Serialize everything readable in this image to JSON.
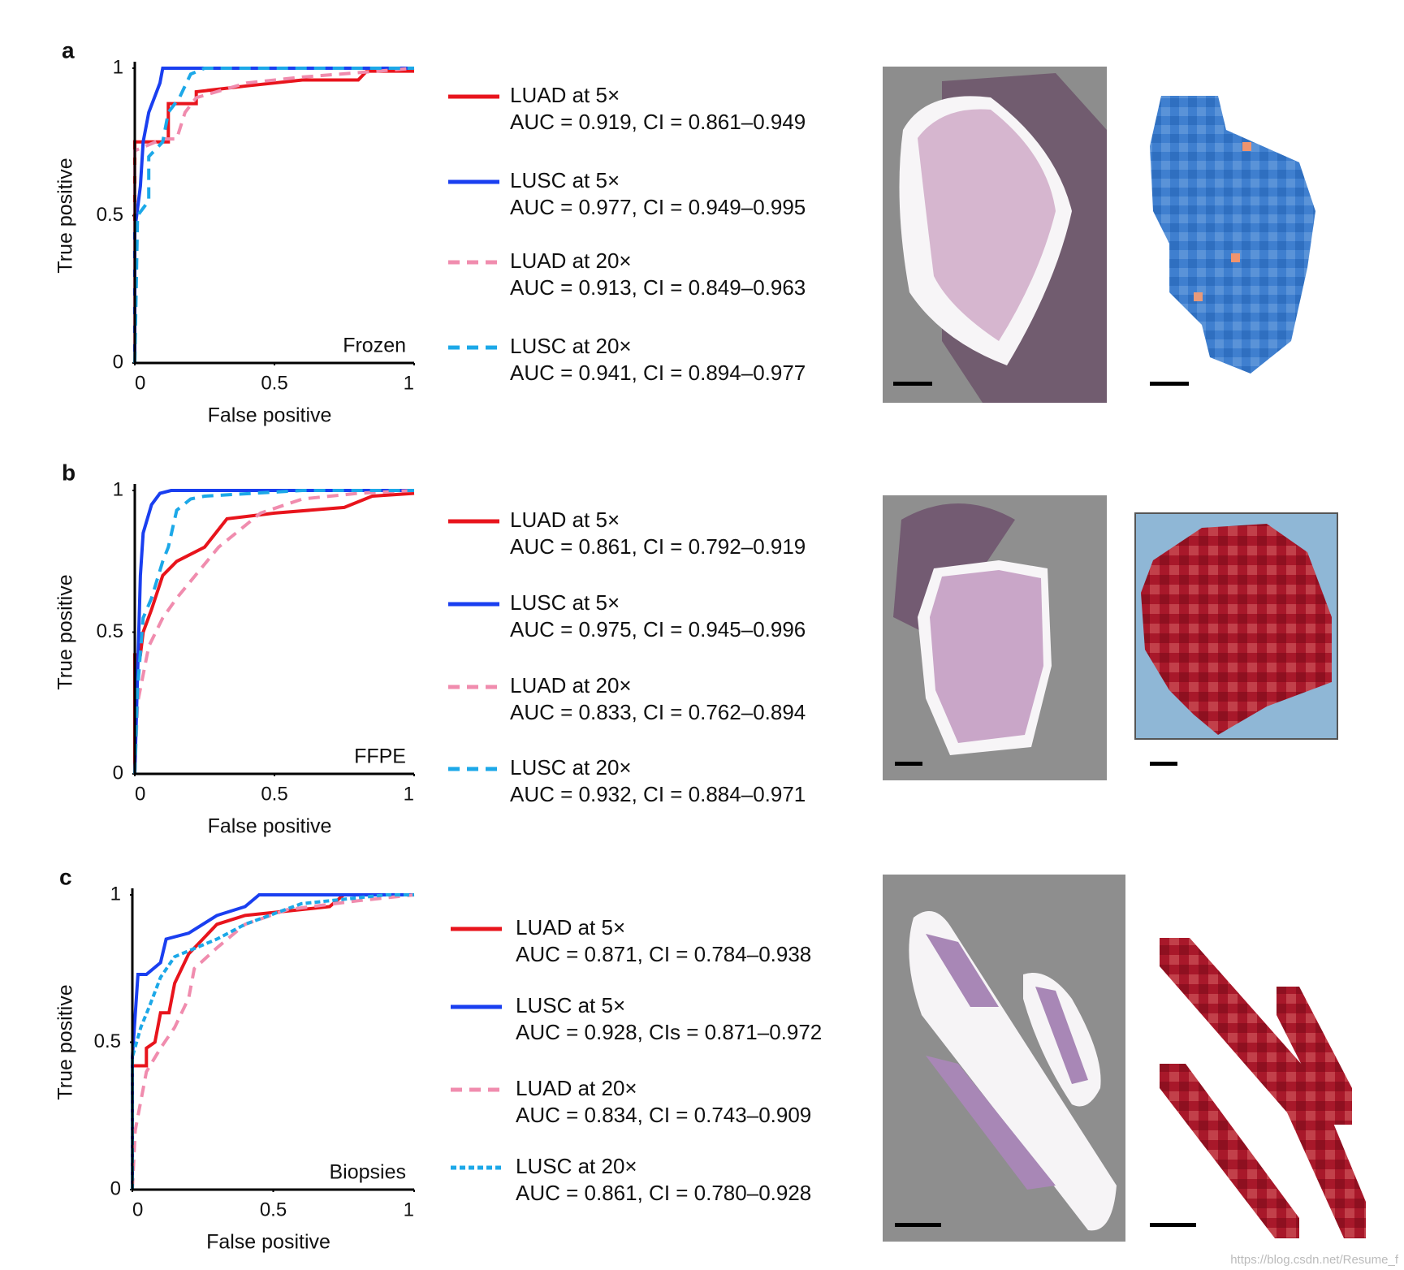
{
  "chart_data": [
    {
      "type": "line",
      "panel_label": "a",
      "annotation": "Frozen",
      "x_label": "False positive",
      "y_label": "True positive",
      "xlim": [
        0,
        1
      ],
      "ylim": [
        0,
        1
      ],
      "xticks": [
        0,
        0.5,
        1
      ],
      "yticks": [
        0,
        0.5,
        1
      ],
      "series": [
        {
          "name": "LUAD at 5×",
          "auc_label": "AUC = 0.919, CI = 0.861–0.949",
          "color": "#e8141c",
          "linestyle": "solid",
          "x": [
            0,
            0,
            0.12,
            0.12,
            0.22,
            0.22,
            0.4,
            0.6,
            0.8,
            0.83,
            1
          ],
          "values": [
            0,
            0.75,
            0.75,
            0.88,
            0.88,
            0.92,
            0.94,
            0.96,
            0.96,
            0.99,
            0.99
          ]
        },
        {
          "name": "LUSC at 5×",
          "auc_label": "AUC = 0.977, CI = 0.949–0.995",
          "color": "#1a3ff0",
          "linestyle": "solid",
          "x": [
            0,
            0,
            0.02,
            0.03,
            0.05,
            0.07,
            0.09,
            0.1,
            1
          ],
          "values": [
            0,
            0.45,
            0.6,
            0.75,
            0.85,
            0.9,
            0.95,
            1,
            1
          ]
        },
        {
          "name": "LUAD at 20×",
          "auc_label": "AUC = 0.913, CI = 0.849–0.963",
          "color": "#f08cae",
          "linestyle": "dashed",
          "x": [
            0,
            0,
            0.1,
            0.15,
            0.18,
            0.22,
            0.4,
            0.6,
            1
          ],
          "values": [
            0,
            0.72,
            0.76,
            0.76,
            0.85,
            0.9,
            0.95,
            0.97,
            1
          ]
        },
        {
          "name": "LUSC at 20×",
          "auc_label": "AUC = 0.941, CI = 0.894–0.977",
          "color": "#1ca8e8",
          "linestyle": "dashed",
          "x": [
            0,
            0.01,
            0.05,
            0.05,
            0.1,
            0.12,
            0.16,
            0.2,
            0.25,
            1
          ],
          "values": [
            0,
            0.5,
            0.55,
            0.7,
            0.75,
            0.85,
            0.9,
            0.98,
            1,
            1
          ]
        }
      ]
    },
    {
      "type": "line",
      "panel_label": "b",
      "annotation": "FFPE",
      "x_label": "False positive",
      "y_label": "True positive",
      "xlim": [
        0,
        1
      ],
      "ylim": [
        0,
        1
      ],
      "xticks": [
        0,
        0.5,
        1
      ],
      "yticks": [
        0,
        0.5,
        1
      ],
      "series": [
        {
          "name": "LUAD at 5×",
          "auc_label": "AUC = 0.861, CI = 0.792–0.919",
          "color": "#e8141c",
          "linestyle": "solid",
          "x": [
            0,
            0,
            0.02,
            0.03,
            0.06,
            0.1,
            0.15,
            0.25,
            0.33,
            0.5,
            0.75,
            0.85,
            1
          ],
          "values": [
            0,
            0.42,
            0.42,
            0.5,
            0.58,
            0.7,
            0.75,
            0.8,
            0.9,
            0.92,
            0.94,
            0.98,
            0.99
          ]
        },
        {
          "name": "LUSC at 5×",
          "auc_label": "AUC = 0.975, CI = 0.945–0.996",
          "color": "#1a3ff0",
          "linestyle": "solid",
          "x": [
            0,
            0.01,
            0.02,
            0.03,
            0.06,
            0.09,
            0.13,
            1
          ],
          "values": [
            0,
            0.35,
            0.7,
            0.85,
            0.95,
            0.99,
            1,
            1
          ]
        },
        {
          "name": "LUAD at 20×",
          "auc_label": "AUC = 0.833, CI = 0.762–0.894",
          "color": "#f08cae",
          "linestyle": "dashed",
          "x": [
            0,
            0.01,
            0.05,
            0.1,
            0.15,
            0.2,
            0.3,
            0.45,
            0.6,
            0.8,
            1
          ],
          "values": [
            0,
            0.25,
            0.45,
            0.55,
            0.62,
            0.68,
            0.8,
            0.92,
            0.97,
            0.99,
            1
          ]
        },
        {
          "name": "LUSC at 20×",
          "auc_label": "AUC = 0.932, CI = 0.884–0.971",
          "color": "#1ca8e8",
          "linestyle": "dashed",
          "x": [
            0,
            0.01,
            0.03,
            0.06,
            0.1,
            0.12,
            0.15,
            0.2,
            0.25,
            0.6,
            1
          ],
          "values": [
            0,
            0.3,
            0.55,
            0.62,
            0.75,
            0.8,
            0.93,
            0.97,
            0.98,
            1,
            1
          ]
        }
      ]
    },
    {
      "type": "line",
      "panel_label": "c",
      "annotation": "Biopsies",
      "x_label": "False positive",
      "y_label": "True positive",
      "xlim": [
        0,
        1
      ],
      "ylim": [
        0,
        1
      ],
      "xticks": [
        0,
        0.5,
        1
      ],
      "yticks": [
        0,
        0.5,
        1
      ],
      "series": [
        {
          "name": "LUAD at 5×",
          "auc_label": "AUC = 0.871, CI = 0.784–0.938",
          "color": "#e8141c",
          "linestyle": "solid",
          "x": [
            0,
            0,
            0.05,
            0.05,
            0.08,
            0.1,
            0.13,
            0.15,
            0.2,
            0.25,
            0.3,
            0.4,
            0.7,
            0.75,
            1
          ],
          "values": [
            0,
            0.42,
            0.42,
            0.48,
            0.5,
            0.6,
            0.6,
            0.7,
            0.8,
            0.85,
            0.9,
            0.93,
            0.96,
            1,
            1
          ]
        },
        {
          "name": "LUSC at 5×",
          "auc_label": "AUC = 0.928, CIs = 0.871–0.972",
          "color": "#1a3ff0",
          "linestyle": "solid",
          "x": [
            0,
            0,
            0.02,
            0.05,
            0.1,
            0.12,
            0.2,
            0.3,
            0.4,
            0.45,
            1
          ],
          "values": [
            0,
            0.45,
            0.73,
            0.73,
            0.77,
            0.85,
            0.87,
            0.93,
            0.96,
            1,
            1
          ]
        },
        {
          "name": "LUAD at 20×",
          "auc_label": "AUC = 0.834, CI = 0.743–0.909",
          "color": "#f08cae",
          "linestyle": "dashed",
          "x": [
            0,
            0.01,
            0.03,
            0.05,
            0.1,
            0.15,
            0.2,
            0.22,
            0.3,
            0.4,
            0.55,
            0.8,
            1
          ],
          "values": [
            0,
            0.2,
            0.3,
            0.4,
            0.48,
            0.55,
            0.65,
            0.75,
            0.82,
            0.9,
            0.95,
            0.98,
            1
          ]
        },
        {
          "name": "LUSC at 20×",
          "auc_label": "AUC = 0.861, CI = 0.780–0.928",
          "color": "#1ca8e8",
          "linestyle": "dotted",
          "x": [
            0,
            0,
            0.03,
            0.06,
            0.1,
            0.15,
            0.3,
            0.4,
            0.6,
            0.9,
            1
          ],
          "values": [
            0,
            0.45,
            0.55,
            0.62,
            0.72,
            0.79,
            0.85,
            0.9,
            0.97,
            1,
            1
          ]
        }
      ]
    }
  ],
  "watermark": "https://blog.csdn.net/Resume_f"
}
